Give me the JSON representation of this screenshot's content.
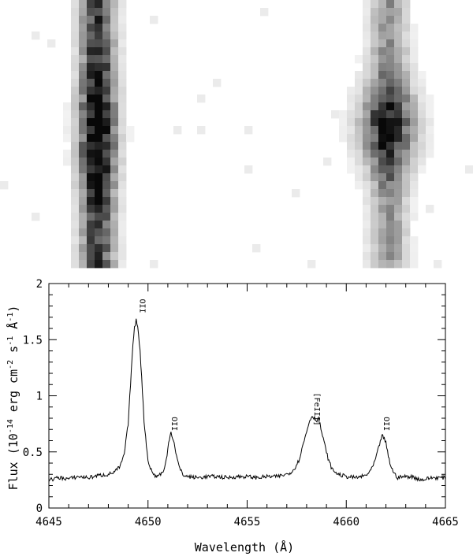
{
  "chart_data": {
    "type": "line",
    "panels": [
      "spectrum-image-grayscale",
      "spectrum-plot"
    ],
    "xlabel": "Wavelength (Å)",
    "ylabel": "Flux (10",
    "ylabel_exp": "-14",
    "ylabel_units": " erg cm",
    "ylabel_units_exp": "-2",
    "ylabel_s": " s",
    "ylabel_s_exp": "-1",
    "ylabel_A": " Å",
    "ylabel_A_exp": "-1",
    "ylabel_close": ")",
    "xlim": [
      4645,
      4665
    ],
    "ylim": [
      0,
      2
    ],
    "xticks": [
      4645,
      4650,
      4655,
      4660,
      4665
    ],
    "xtick_labels": [
      "4645",
      "4650",
      "4655",
      "4660",
      "4665"
    ],
    "yticks": [
      0,
      0.5,
      1,
      1.5,
      2
    ],
    "ytick_labels": [
      "0",
      "0.5",
      "1",
      "1.5",
      "2"
    ],
    "grid": false,
    "line_color": "#000000",
    "series": [
      {
        "x": [
          4645.0,
          4645.5,
          4646.0,
          4646.5,
          4647.0,
          4647.5,
          4648.0,
          4648.3,
          4648.6,
          4648.8,
          4649.0,
          4649.1,
          4649.2,
          4649.3,
          4649.4,
          4649.5,
          4649.6,
          4649.7,
          4649.8,
          4650.0,
          4650.2,
          4650.4,
          4650.6,
          4650.8,
          4650.95,
          4651.05,
          4651.15,
          4651.3,
          4651.45,
          4651.6,
          4651.8,
          4652.0,
          4652.5,
          4653.0,
          4653.5,
          4654.0,
          4654.5,
          4655.0,
          4655.5,
          4656.0,
          4656.5,
          4657.0,
          4657.3,
          4657.6,
          4657.8,
          4658.0,
          4658.1,
          4658.2,
          4658.3,
          4658.4,
          4658.5,
          4658.6,
          4658.7,
          4658.9,
          4659.1,
          4659.3,
          4659.6,
          4660.0,
          4660.5,
          4661.0,
          4661.3,
          4661.5,
          4661.7,
          4661.8,
          4661.9,
          4662.0,
          4662.1,
          4662.2,
          4662.4,
          4662.6,
          4662.9,
          4663.3,
          4663.8,
          4664.3,
          4665.0
        ],
        "y": [
          0.25,
          0.27,
          0.26,
          0.28,
          0.27,
          0.29,
          0.3,
          0.32,
          0.37,
          0.48,
          0.75,
          1.05,
          1.35,
          1.58,
          1.68,
          1.6,
          1.4,
          1.1,
          0.78,
          0.42,
          0.32,
          0.28,
          0.3,
          0.33,
          0.45,
          0.6,
          0.68,
          0.6,
          0.45,
          0.35,
          0.29,
          0.28,
          0.27,
          0.28,
          0.28,
          0.27,
          0.28,
          0.28,
          0.27,
          0.28,
          0.28,
          0.3,
          0.33,
          0.42,
          0.55,
          0.68,
          0.75,
          0.8,
          0.82,
          0.8,
          0.78,
          0.8,
          0.72,
          0.57,
          0.43,
          0.34,
          0.3,
          0.28,
          0.27,
          0.29,
          0.35,
          0.45,
          0.58,
          0.65,
          0.62,
          0.58,
          0.48,
          0.4,
          0.31,
          0.27,
          0.28,
          0.28,
          0.25,
          0.27,
          0.27
        ]
      }
    ],
    "annotations": [
      {
        "text": "OII",
        "x": 4649.6,
        "y": 1.8
      },
      {
        "text": "OII",
        "x": 4651.2,
        "y": 0.75
      },
      {
        "text": "[FeIII]",
        "x": 4658.4,
        "y": 0.88
      },
      {
        "text": "OII",
        "x": 4661.9,
        "y": 0.75
      }
    ]
  },
  "image_panel": {
    "type": "heatmap",
    "colormap": "grayscale-inverted",
    "cols": 60,
    "rows": 34,
    "sources": [
      {
        "label": "left-spectrum-trace",
        "col_center": 12.4,
        "row_center": 16,
        "col_sigma": 1.5,
        "row_sigma": 40,
        "peak": 0.8
      },
      {
        "label": "left-spectrum-core",
        "col_center": 12.4,
        "row_center": 17,
        "col_sigma": 1.8,
        "row_sigma": 5,
        "peak": 0.35
      },
      {
        "label": "right-spectrum-trace",
        "col_center": 49.3,
        "row_center": 16,
        "col_sigma": 1.6,
        "row_sigma": 40,
        "peak": 0.45
      },
      {
        "label": "right-spectrum-knot",
        "col_center": 49.2,
        "row_center": 16,
        "col_sigma": 2.7,
        "row_sigma": 3.8,
        "peak": 0.55
      }
    ]
  }
}
